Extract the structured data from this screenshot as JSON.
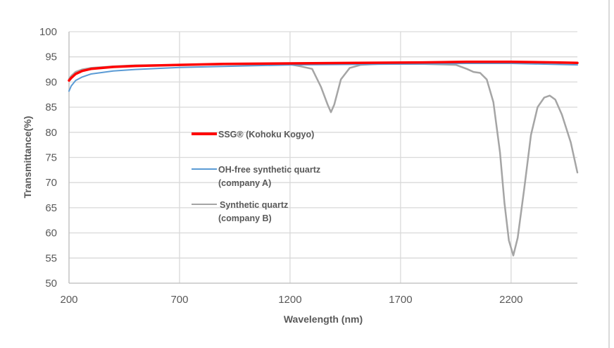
{
  "chart_data": {
    "type": "line",
    "title": "",
    "xlabel": "Wavelength (nm)",
    "ylabel": "Transmittance(%)",
    "xlim": [
      200,
      2500
    ],
    "ylim": [
      50,
      100
    ],
    "x_ticks": [
      "200",
      "700",
      "1200",
      "1700",
      "2200"
    ],
    "y_ticks": [
      "50",
      "55",
      "60",
      "65",
      "70",
      "75",
      "80",
      "85",
      "90",
      "95",
      "100"
    ],
    "grid": true,
    "legend_position": "inside-center-left",
    "series": [
      {
        "name": "SSG® (Kohoku Kogyo)",
        "color": "#ff0000",
        "x": [
          200,
          210,
          230,
          260,
          300,
          400,
          500,
          700,
          900,
          1200,
          1500,
          1800,
          2000,
          2200,
          2400,
          2500
        ],
        "y": [
          90.3,
          90.8,
          91.6,
          92.2,
          92.6,
          93.0,
          93.2,
          93.4,
          93.6,
          93.7,
          93.8,
          93.9,
          94.0,
          94.0,
          93.9,
          93.8
        ]
      },
      {
        "name": "OH-free synthetic quartz (company A)",
        "color": "#5b9bd5",
        "x": [
          200,
          210,
          230,
          260,
          300,
          400,
          500,
          700,
          900,
          1200,
          1500,
          1800,
          2000,
          2200,
          2400,
          2500
        ],
        "y": [
          88.2,
          89.2,
          90.3,
          91.0,
          91.6,
          92.2,
          92.5,
          92.9,
          93.1,
          93.4,
          93.5,
          93.6,
          93.7,
          93.7,
          93.5,
          93.4
        ]
      },
      {
        "name": "Synthetic quartz (company B)",
        "color": "#a5a5a5",
        "x": [
          200,
          210,
          230,
          260,
          300,
          400,
          500,
          700,
          900,
          1200,
          1250,
          1300,
          1340,
          1370,
          1385,
          1400,
          1430,
          1470,
          1520,
          1600,
          1800,
          1950,
          2000,
          2030,
          2060,
          2090,
          2120,
          2150,
          2170,
          2190,
          2210,
          2230,
          2260,
          2290,
          2320,
          2350,
          2375,
          2400,
          2430,
          2470,
          2500
        ],
        "y": [
          90.6,
          91.2,
          92.0,
          92.5,
          92.8,
          93.1,
          93.3,
          93.4,
          93.5,
          93.5,
          93.1,
          92.6,
          89.0,
          85.5,
          84.0,
          85.5,
          90.5,
          92.8,
          93.4,
          93.6,
          93.6,
          93.4,
          92.6,
          92.0,
          91.8,
          90.5,
          86.0,
          76.0,
          66.0,
          58.5,
          55.5,
          59.0,
          69.0,
          79.5,
          85.0,
          86.9,
          87.3,
          86.5,
          83.5,
          78.0,
          72.0
        ]
      }
    ]
  },
  "legend": [
    {
      "label": "SSG® (Kohoku Kogyo)"
    },
    {
      "label_line1": "OH-free synthetic quartz",
      "label_line2": "(company A)"
    },
    {
      "label_line1": " Synthetic quartz",
      "label_line2": "(company B)"
    }
  ],
  "axes": {
    "xlabel": "Wavelength (nm)",
    "ylabel": "Transmittance(%)"
  }
}
